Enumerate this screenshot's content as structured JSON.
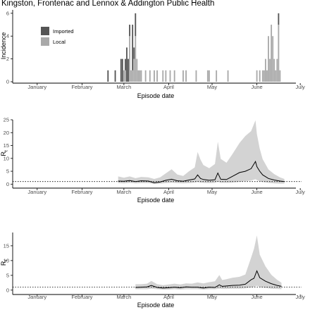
{
  "page_title": "Kingston, Frontenac and Lennox & Addington Public Health",
  "colors": {
    "imported": "#555555",
    "local": "#a9a9a9",
    "ribbon": "#d3d3d3",
    "line": "#000000",
    "axis": "#000000",
    "tick_text": "#4d4d4d"
  },
  "chart_data": [
    {
      "id": "incidence",
      "type": "bar",
      "ylabel": "Incidence",
      "xlabel": "Episode date",
      "x_ticks": [
        "January",
        "February",
        "March",
        "April",
        "May",
        "June",
        "July"
      ],
      "y_ticks": [
        "0",
        "2",
        "4",
        "6"
      ],
      "ylim": [
        0,
        6.3
      ],
      "x_range": [
        "2020-01-01",
        "2020-07-13"
      ],
      "legend": {
        "position": "top-left",
        "entries": [
          "Imported",
          "Local"
        ]
      },
      "x_dates": [
        "2020-03-05",
        "2020-03-10",
        "2020-03-14",
        "2020-03-15",
        "2020-03-16",
        "2020-03-17",
        "2020-03-18",
        "2020-03-19",
        "2020-03-20",
        "2020-03-21",
        "2020-03-22",
        "2020-03-23",
        "2020-03-24",
        "2020-03-25",
        "2020-03-26",
        "2020-03-27",
        "2020-03-28",
        "2020-03-31",
        "2020-04-03",
        "2020-04-06",
        "2020-04-08",
        "2020-04-12",
        "2020-04-14",
        "2020-04-17",
        "2020-04-20",
        "2020-04-26",
        "2020-04-28",
        "2020-05-05",
        "2020-05-13",
        "2020-05-14",
        "2020-05-19",
        "2020-05-27",
        "2020-06-16",
        "2020-06-18",
        "2020-06-20",
        "2020-06-21",
        "2020-06-22",
        "2020-06-23",
        "2020-06-24",
        "2020-06-25",
        "2020-06-26",
        "2020-06-27",
        "2020-06-28",
        "2020-06-29",
        "2020-06-30",
        "2020-07-01",
        "2020-07-02"
      ],
      "series": [
        {
          "name": "Imported",
          "values": [
            1,
            1,
            2,
            2,
            0,
            1,
            3,
            2,
            1,
            0,
            4,
            1,
            2,
            0,
            0,
            0,
            0,
            0,
            0,
            0,
            0,
            0,
            0,
            0,
            0,
            0,
            0,
            0,
            0,
            0,
            0,
            0,
            0,
            0,
            0,
            0,
            0,
            0,
            0,
            0,
            0,
            0,
            0,
            0,
            0,
            1,
            0
          ]
        },
        {
          "name": "Local",
          "values": [
            0,
            0,
            0,
            0,
            1,
            1,
            0,
            0,
            4,
            1,
            1,
            2,
            4,
            2,
            1,
            1,
            1,
            1,
            1,
            1,
            1,
            1,
            1,
            1,
            1,
            1,
            1,
            1,
            1,
            1,
            1,
            1,
            1,
            1,
            1,
            1,
            2,
            1,
            4,
            2,
            5,
            4,
            2,
            1,
            2,
            5,
            1
          ]
        }
      ]
    },
    {
      "id": "rt_panel_1",
      "type": "line",
      "ylabel": "Rt",
      "xlabel": "Episode date",
      "x_ticks": [
        "January",
        "February",
        "March",
        "April",
        "May",
        "June",
        "July"
      ],
      "y_ticks": [
        "0",
        "5",
        "10",
        "15",
        "20",
        "25"
      ],
      "ylim": [
        -1,
        25
      ],
      "reference_line": 1,
      "x": [
        "2020-03-12",
        "2020-03-16",
        "2020-03-20",
        "2020-03-24",
        "2020-03-28",
        "2020-04-02",
        "2020-04-06",
        "2020-04-10",
        "2020-04-14",
        "2020-04-18",
        "2020-04-22",
        "2020-04-26",
        "2020-04-30",
        "2020-05-04",
        "2020-05-06",
        "2020-05-08",
        "2020-05-10",
        "2020-05-14",
        "2020-05-18",
        "2020-05-20",
        "2020-05-22",
        "2020-05-26",
        "2020-05-30",
        "2020-06-04",
        "2020-06-08",
        "2020-06-12",
        "2020-06-15",
        "2020-06-16",
        "2020-06-18",
        "2020-06-20",
        "2020-06-24",
        "2020-06-28",
        "2020-07-02",
        "2020-07-05"
      ],
      "estimate": [
        1.2,
        1.1,
        1.4,
        1.0,
        1.3,
        1.2,
        0.5,
        0.8,
        1.5,
        1.9,
        1.3,
        1.1,
        1.6,
        2.0,
        3.6,
        2.2,
        1.8,
        1.5,
        1.7,
        4.3,
        1.9,
        1.8,
        3.0,
        4.5,
        5.0,
        6.0,
        8.8,
        6.8,
        5.0,
        3.6,
        2.2,
        1.6,
        1.2,
        1.0
      ],
      "lower": [
        0.4,
        0.3,
        0.5,
        0.3,
        0.4,
        0.4,
        0.1,
        0.2,
        0.4,
        0.6,
        0.4,
        0.3,
        0.4,
        0.6,
        0.9,
        0.6,
        0.5,
        0.4,
        0.5,
        1.0,
        0.5,
        0.5,
        0.6,
        0.9,
        1.2,
        1.4,
        1.9,
        1.6,
        1.1,
        0.8,
        0.5,
        0.3,
        0.2,
        0.2
      ],
      "upper": [
        3.0,
        2.5,
        3.0,
        2.3,
        2.8,
        2.6,
        2.0,
        2.6,
        4.2,
        5.8,
        3.7,
        3.2,
        5.0,
        6.5,
        12.5,
        9.5,
        7.4,
        6.2,
        7.8,
        16.5,
        9.8,
        8.3,
        11.6,
        16.0,
        18.7,
        20.6,
        24.8,
        19.5,
        13.7,
        9.7,
        5.7,
        3.9,
        2.6,
        2.0
      ]
    },
    {
      "id": "rt_panel_2",
      "type": "line",
      "ylabel": "Rt",
      "xlabel": "Episode date",
      "x_ticks": [
        "January",
        "February",
        "March",
        "April",
        "May",
        "June",
        "July"
      ],
      "y_ticks": [
        "0",
        "5",
        "10",
        "15"
      ],
      "ylim": [
        -1,
        19.5
      ],
      "reference_line": 1,
      "x": [
        "2020-03-24",
        "2020-03-28",
        "2020-04-01",
        "2020-04-04",
        "2020-04-08",
        "2020-04-12",
        "2020-04-16",
        "2020-04-20",
        "2020-04-24",
        "2020-04-28",
        "2020-05-02",
        "2020-05-06",
        "2020-05-10",
        "2020-05-14",
        "2020-05-18",
        "2020-05-21",
        "2020-05-23",
        "2020-05-26",
        "2020-05-30",
        "2020-06-04",
        "2020-06-08",
        "2020-06-12",
        "2020-06-14",
        "2020-06-16",
        "2020-06-18",
        "2020-06-22",
        "2020-06-26",
        "2020-06-30",
        "2020-07-03"
      ],
      "estimate": [
        0.9,
        1.0,
        1.1,
        1.6,
        0.9,
        0.7,
        0.8,
        1.0,
        0.8,
        1.1,
        1.0,
        1.0,
        0.7,
        1.0,
        0.9,
        1.8,
        1.3,
        1.4,
        1.6,
        1.7,
        2.0,
        3.5,
        4.0,
        6.5,
        4.2,
        3.0,
        2.2,
        1.6,
        1.3
      ],
      "lower": [
        0.3,
        0.3,
        0.3,
        0.5,
        0.3,
        0.2,
        0.2,
        0.3,
        0.2,
        0.3,
        0.3,
        0.3,
        0.2,
        0.3,
        0.3,
        0.5,
        0.4,
        0.4,
        0.5,
        0.5,
        0.6,
        0.9,
        1.0,
        1.5,
        1.0,
        0.7,
        0.5,
        0.4,
        0.3
      ],
      "upper": [
        2.0,
        2.0,
        2.2,
        3.1,
        2.0,
        1.7,
        1.9,
        2.2,
        1.9,
        2.3,
        2.2,
        2.6,
        2.3,
        2.7,
        3.0,
        5.1,
        3.4,
        3.7,
        4.2,
        4.5,
        5.3,
        11.0,
        14.0,
        18.5,
        12.0,
        8.0,
        5.2,
        3.5,
        2.5
      ]
    }
  ]
}
